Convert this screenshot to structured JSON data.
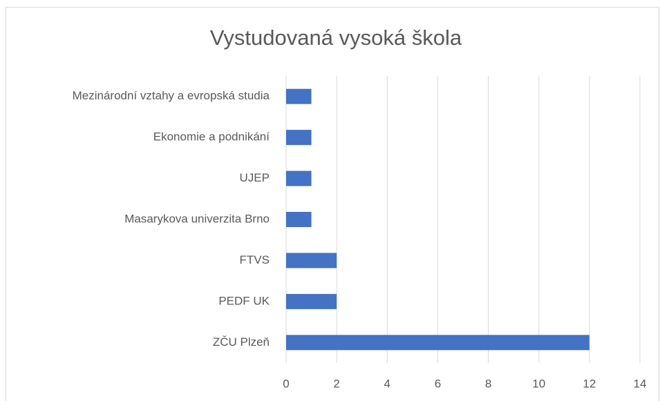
{
  "chart_data": {
    "type": "hbar",
    "title": "Vystudovaná vysoká škola",
    "categories": [
      "Mezinárodní vztahy a evropská studia",
      "Ekonomie a podnikání",
      "UJEP",
      "Masarykova univerzita Brno",
      "FTVS",
      "PEDF UK",
      "ZČU Plzeň"
    ],
    "values": [
      1,
      1,
      1,
      1,
      2,
      2,
      12
    ],
    "color": "#4472c4",
    "xlim": [
      0,
      14
    ],
    "xticks": [
      0,
      2,
      4,
      6,
      8,
      10,
      12,
      14
    ],
    "grid": true
  }
}
